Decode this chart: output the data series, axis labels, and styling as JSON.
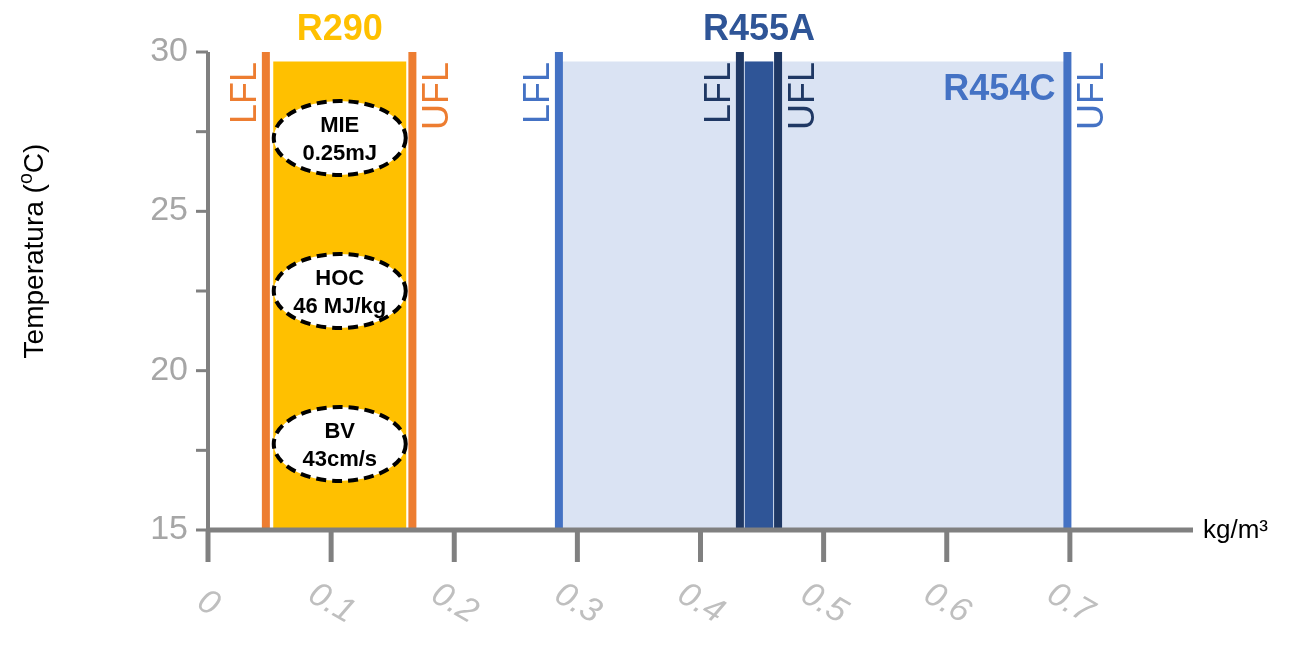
{
  "chart_data": {
    "type": "area",
    "xlabel": "kg/m³",
    "ylabel": "Temperatura ($^{o}$C)",
    "xlim": [
      0,
      0.8
    ],
    "xticks": [
      0,
      0.1,
      0.2,
      0.3,
      0.4,
      0.5,
      0.6,
      0.7
    ],
    "ylim": [
      15,
      30
    ],
    "yticks": [
      15,
      {
        "value": 17.5,
        "label": null
      },
      20,
      {
        "value": 22.5,
        "label": null
      },
      25,
      {
        "value": 27.5,
        "label": null
      },
      30
    ],
    "series": [
      {
        "name": "R290",
        "color": "#ffc000",
        "x": [
          0.053,
          0.161
        ],
        "values": [
          29.7,
          29.7
        ]
      },
      {
        "name": "R454C",
        "color": "#dae3f3",
        "x": [
          0.285,
          0.698
        ],
        "values": [
          29.7,
          29.7
        ]
      },
      {
        "name": "R455A",
        "color": "#2f5597",
        "x": [
          0.436,
          0.459
        ],
        "values": [
          29.7,
          29.7
        ]
      }
    ],
    "ref_lines": [
      {
        "axis": "x",
        "value": 0.047,
        "label": "LFL",
        "color": "#ed7d31"
      },
      {
        "axis": "x",
        "value": 0.166,
        "label": "UFL",
        "color": "#ed7d31"
      },
      {
        "axis": "x",
        "value": 0.285,
        "label": "LFL",
        "color": "#4472c4"
      },
      {
        "axis": "x",
        "value": 0.698,
        "label": "UFL",
        "color": "#4472c4"
      },
      {
        "axis": "x",
        "value": 0.432,
        "label": "LFL",
        "color": "#1f3864"
      },
      {
        "axis": "x",
        "value": 0.463,
        "label": "UFL",
        "color": "#1f3864"
      }
    ],
    "annotations": [
      "MIE\n0.25mJ",
      "HOC\n46 MJ/kg",
      "BV\n43cm/s"
    ]
  }
}
